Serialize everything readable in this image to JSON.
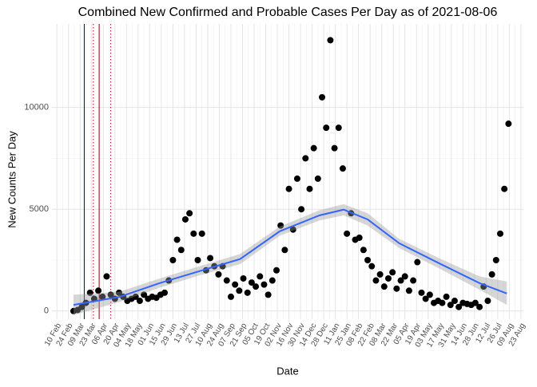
{
  "chart_data": {
    "type": "scatter",
    "title": "Combined New Confirmed and Probable Cases Per Day as of 2021-08-06",
    "x_label": "Date",
    "y_label": "New Counts Per Day",
    "xlim": [
      -6,
      563
    ],
    "ylim": [
      -400,
      14100
    ],
    "yticks": [
      0,
      5000,
      10000
    ],
    "grid": true,
    "color": "#000000",
    "xticks": [
      {
        "value": 0,
        "label": "10 Feb"
      },
      {
        "value": 14,
        "label": "24 Feb"
      },
      {
        "value": 28,
        "label": "09 Mar"
      },
      {
        "value": 42,
        "label": "23 Mar"
      },
      {
        "value": 56,
        "label": "06 Apr"
      },
      {
        "value": 70,
        "label": "20 Apr"
      },
      {
        "value": 84,
        "label": "04 May"
      },
      {
        "value": 98,
        "label": "18 May"
      },
      {
        "value": 112,
        "label": "01 Jun"
      },
      {
        "value": 126,
        "label": "15 Jun"
      },
      {
        "value": 140,
        "label": "29 Jun"
      },
      {
        "value": 154,
        "label": "13 Jul"
      },
      {
        "value": 168,
        "label": "27 Jul"
      },
      {
        "value": 182,
        "label": "10 Aug"
      },
      {
        "value": 196,
        "label": "24 Aug"
      },
      {
        "value": 210,
        "label": "07 Sep"
      },
      {
        "value": 224,
        "label": "21 Sep"
      },
      {
        "value": 238,
        "label": "05 Oct"
      },
      {
        "value": 252,
        "label": "19 Oct"
      },
      {
        "value": 266,
        "label": "02 Nov"
      },
      {
        "value": 280,
        "label": "16 Nov"
      },
      {
        "value": 294,
        "label": "30 Nov"
      },
      {
        "value": 308,
        "label": "14 Dec"
      },
      {
        "value": 322,
        "label": "28 Dec"
      },
      {
        "value": 336,
        "label": "11 Jan"
      },
      {
        "value": 350,
        "label": "25 Jan"
      },
      {
        "value": 364,
        "label": "08 Feb"
      },
      {
        "value": 378,
        "label": "22 Feb"
      },
      {
        "value": 392,
        "label": "08 Mar"
      },
      {
        "value": 406,
        "label": "22 Mar"
      },
      {
        "value": 420,
        "label": "05 Apr"
      },
      {
        "value": 434,
        "label": "19 Apr"
      },
      {
        "value": 448,
        "label": "03 May"
      },
      {
        "value": 462,
        "label": "17 May"
      },
      {
        "value": 476,
        "label": "31 May"
      },
      {
        "value": 490,
        "label": "14 Jun"
      },
      {
        "value": 504,
        "label": "28 Jun"
      },
      {
        "value": 518,
        "label": "12 Jul"
      },
      {
        "value": 532,
        "label": "26 Jul"
      },
      {
        "value": 546,
        "label": "09 Aug"
      },
      {
        "value": 560,
        "label": "23 Aug"
      }
    ],
    "vlines": [
      {
        "x": 33,
        "color": "#0000aa",
        "style": "solid"
      },
      {
        "x": 44,
        "color": "#cc0000",
        "style": "dotted"
      },
      {
        "x": 51,
        "color": "#880000",
        "style": "solid"
      },
      {
        "x": 65,
        "color": "#cc0000",
        "style": "dotted"
      }
    ],
    "x": [
      20,
      25,
      30,
      35,
      40,
      45,
      50,
      55,
      60,
      65,
      70,
      75,
      80,
      85,
      90,
      95,
      100,
      105,
      110,
      115,
      120,
      125,
      130,
      135,
      140,
      145,
      150,
      155,
      160,
      165,
      170,
      175,
      180,
      185,
      190,
      195,
      200,
      205,
      210,
      215,
      220,
      225,
      230,
      235,
      240,
      245,
      250,
      255,
      260,
      265,
      270,
      275,
      280,
      285,
      290,
      295,
      300,
      305,
      310,
      315,
      320,
      325,
      330,
      335,
      340,
      345,
      350,
      355,
      360,
      365,
      370,
      375,
      380,
      385,
      390,
      395,
      400,
      405,
      410,
      415,
      420,
      425,
      430,
      435,
      440,
      445,
      450,
      455,
      460,
      465,
      470,
      475,
      480,
      485,
      490,
      495,
      500,
      505,
      510,
      515,
      520,
      525,
      530,
      535,
      540,
      545
    ],
    "values": [
      0,
      50,
      200,
      400,
      900,
      600,
      1000,
      700,
      1700,
      800,
      600,
      900,
      700,
      500,
      600,
      700,
      500,
      800,
      600,
      700,
      650,
      800,
      900,
      1500,
      2500,
      3500,
      3000,
      4500,
      4800,
      3800,
      2500,
      3800,
      2000,
      2600,
      2200,
      1800,
      2200,
      1500,
      700,
      1300,
      1000,
      1600,
      900,
      1400,
      1200,
      1700,
      1300,
      800,
      1500,
      2000,
      4200,
      3000,
      6000,
      4000,
      6500,
      5000,
      7500,
      6000,
      8000,
      6500,
      10500,
      9000,
      13300,
      8000,
      9000,
      7000,
      3800,
      4800,
      3500,
      3600,
      3000,
      2500,
      2200,
      1500,
      1800,
      1200,
      1600,
      1900,
      1100,
      1500,
      1700,
      1000,
      1500,
      2400,
      900,
      600,
      800,
      400,
      500,
      400,
      700,
      300,
      500,
      200,
      400,
      350,
      300,
      400,
      200,
      1200,
      500,
      1800,
      2500,
      3800,
      6000,
      9200
    ],
    "smooth": {
      "color": "#3366ff",
      "x": [
        20,
        76,
        124,
        172,
        221,
        269,
        317,
        346,
        375,
        413,
        461,
        510,
        543
      ],
      "values": [
        300,
        700,
        1370,
        1960,
        2550,
        3920,
        4700,
        4980,
        4500,
        3330,
        2350,
        1370,
        860
      ],
      "lower": [
        -200,
        450,
        1150,
        1750,
        2300,
        3700,
        4450,
        4700,
        4200,
        3100,
        2100,
        1050,
        300
      ],
      "upper": [
        800,
        950,
        1600,
        2200,
        2800,
        4150,
        4950,
        5250,
        4800,
        3550,
        2600,
        1700,
        1450
      ]
    }
  }
}
